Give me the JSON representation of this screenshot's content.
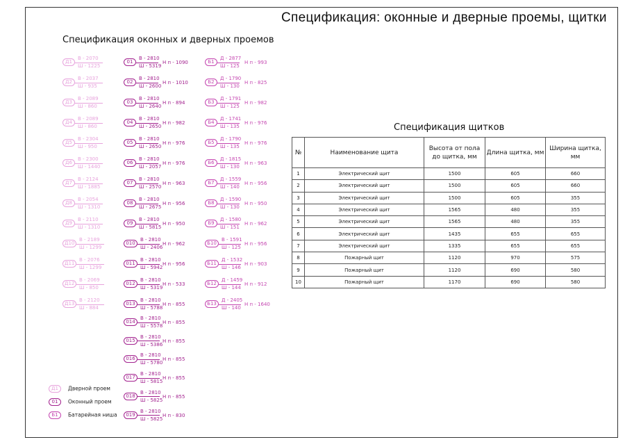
{
  "sheet_title": "Спецификация: оконные и дверные проемы, щитки",
  "openings": {
    "title": "Спецификация оконных и дверных проемов",
    "colors": {
      "door": "#e7a2dc",
      "window": "#a2208e",
      "niche": "#c445b0"
    },
    "doors": [
      {
        "mark": "Д1",
        "top": "В - 2070",
        "bottom": "Ш - 1225"
      },
      {
        "mark": "Д2",
        "top": "В - 2037",
        "bottom": "Ш - 935"
      },
      {
        "mark": "Д3",
        "top": "В - 2089",
        "bottom": "Ш - 860"
      },
      {
        "mark": "Д4",
        "top": "В - 2089",
        "bottom": "Ш - 860"
      },
      {
        "mark": "Д5",
        "top": "В - 2304",
        "bottom": "Ш - 950"
      },
      {
        "mark": "Д6",
        "top": "В - 2300",
        "bottom": "Ш - 1440"
      },
      {
        "mark": "Д7",
        "top": "В - 2124",
        "bottom": "Ш - 1885"
      },
      {
        "mark": "Д8",
        "top": "В - 2054",
        "bottom": "Ш - 1310"
      },
      {
        "mark": "Д9",
        "top": "В - 2110",
        "bottom": "Ш - 1310"
      },
      {
        "mark": "Д10",
        "top": "В - 2189",
        "bottom": "Ш - 1299"
      },
      {
        "mark": "Д11",
        "top": "В - 2076",
        "bottom": "Ш - 1299"
      },
      {
        "mark": "Д12",
        "top": "В - 2069",
        "bottom": "Ш - 850"
      },
      {
        "mark": "Д13",
        "top": "В - 2120",
        "bottom": "Ш - 884"
      }
    ],
    "windows": [
      {
        "mark": "01",
        "top": "В - 2810",
        "bottom": "Ш - 5319",
        "hp": "Н п - 1090"
      },
      {
        "mark": "02",
        "top": "В - 2810",
        "bottom": "Ш - 2600",
        "hp": "Н п - 1010"
      },
      {
        "mark": "03",
        "top": "В - 2810",
        "bottom": "Ш - 2640",
        "hp": "Н п - 894"
      },
      {
        "mark": "04",
        "top": "В - 2810",
        "bottom": "Ш - 2650",
        "hp": "Н п - 982"
      },
      {
        "mark": "05",
        "top": "В - 2810",
        "bottom": "Ш - 2650",
        "hp": "Н п - 976"
      },
      {
        "mark": "06",
        "top": "В - 2810",
        "bottom": "Ш - 2057",
        "hp": "Н п - 976"
      },
      {
        "mark": "07",
        "top": "В - 2810",
        "bottom": "Ш - 2570",
        "hp": "Н п - 963"
      },
      {
        "mark": "08",
        "top": "В - 2810",
        "bottom": "Ш - 2675",
        "hp": "Н п - 956"
      },
      {
        "mark": "09",
        "top": "В - 2810",
        "bottom": "Ш - 5815",
        "hp": "Н п - 950"
      },
      {
        "mark": "010",
        "top": "В - 2810",
        "bottom": "Ш - 2406",
        "hp": "Н п - 962"
      },
      {
        "mark": "011",
        "top": "В - 2810",
        "bottom": "Ш - 5942",
        "hp": "Н п - 956"
      },
      {
        "mark": "012",
        "top": "В - 2810",
        "bottom": "Ш - 5319",
        "hp": "Н п - 533"
      },
      {
        "mark": "013",
        "top": "В - 2810",
        "bottom": "Ш - 5788",
        "hp": "Н п - 855"
      },
      {
        "mark": "014",
        "top": "В - 2810",
        "bottom": "Ш - 5578",
        "hp": "Н п - 855"
      },
      {
        "mark": "015",
        "top": "В - 2810",
        "bottom": "Ш - 5386",
        "hp": "Н п - 855"
      },
      {
        "mark": "016",
        "top": "В - 2810",
        "bottom": "Ш - 5780",
        "hp": "Н п - 855"
      },
      {
        "mark": "017",
        "top": "В - 2810",
        "bottom": "Ш - 5815",
        "hp": "Н п - 855"
      },
      {
        "mark": "018",
        "top": "В - 2810",
        "bottom": "Ш - 5825",
        "hp": "Н п - 855"
      },
      {
        "mark": "019",
        "top": "В - 2810",
        "bottom": "Ш - 5825",
        "hp": "Н п - 830"
      }
    ],
    "niches": [
      {
        "mark": "Б1",
        "top": "Д - 2877",
        "bottom": "Ш - 125",
        "hp": "Н п - 993"
      },
      {
        "mark": "Б2",
        "top": "Д - 1790",
        "bottom": "Ш - 130",
        "hp": "Н п - 825"
      },
      {
        "mark": "Б3",
        "top": "Д - 1791",
        "bottom": "Ш - 125",
        "hp": "Н п - 982"
      },
      {
        "mark": "Б4",
        "top": "Д - 1741",
        "bottom": "Ш - 135",
        "hp": "Н п - 976"
      },
      {
        "mark": "Б5",
        "top": "Д - 1790",
        "bottom": "Ш - 135",
        "hp": "Н п - 976"
      },
      {
        "mark": "Б6",
        "top": "Д - 1815",
        "bottom": "Ш - 130",
        "hp": "Н п - 963"
      },
      {
        "mark": "Б7",
        "top": "Д - 1559",
        "bottom": "Ш - 140",
        "hp": "Н п - 956"
      },
      {
        "mark": "Б8",
        "top": "Д - 1590",
        "bottom": "Ш - 130",
        "hp": "Н п - 950"
      },
      {
        "mark": "Б9",
        "top": "Д - 1580",
        "bottom": "Ш - 151",
        "hp": "Н п - 962"
      },
      {
        "mark": "Б10",
        "top": "В - 1591",
        "bottom": "Ш - 125",
        "hp": "Н п - 956"
      },
      {
        "mark": "Б11",
        "top": "Д - 1532",
        "bottom": "Ш - 146",
        "hp": "Н п - 903"
      },
      {
        "mark": "Б12",
        "top": "Д - 1459",
        "bottom": "Ш - 144",
        "hp": "Н п - 912"
      },
      {
        "mark": "Б13",
        "top": "Д - 2405",
        "bottom": "Ш - 140",
        "hp": "Н п - 1640"
      }
    ],
    "legend": [
      {
        "mark": "Д1",
        "label": "Дверной проем",
        "kind": "door"
      },
      {
        "mark": "01",
        "label": "Оконный проем",
        "kind": "window"
      },
      {
        "mark": "Б1",
        "label": "Батарейная ниша",
        "kind": "niche"
      }
    ]
  },
  "panels": {
    "title": "Спецификация щитков",
    "headers": [
      "№",
      "Наименование щита",
      "Высота от пола до щитка, мм",
      "Длина щитка, мм",
      "Ширина щитка, мм"
    ],
    "rows": [
      [
        "1",
        "Электрический щит",
        "1500",
        "605",
        "660"
      ],
      [
        "2",
        "Электрический щит",
        "1500",
        "605",
        "660"
      ],
      [
        "3",
        "Электрический щит",
        "1500",
        "605",
        "355"
      ],
      [
        "4",
        "Электрический щит",
        "1565",
        "480",
        "355"
      ],
      [
        "5",
        "Электрический щит",
        "1565",
        "480",
        "355"
      ],
      [
        "6",
        "Электрический щит",
        "1435",
        "655",
        "655"
      ],
      [
        "7",
        "Электрический щит",
        "1335",
        "655",
        "655"
      ],
      [
        "8",
        "Пожарный щит",
        "1120",
        "970",
        "575"
      ],
      [
        "9",
        "Пожарный щит",
        "1120",
        "690",
        "580"
      ],
      [
        "10",
        "Пожарный щит",
        "1170",
        "690",
        "580"
      ]
    ]
  }
}
